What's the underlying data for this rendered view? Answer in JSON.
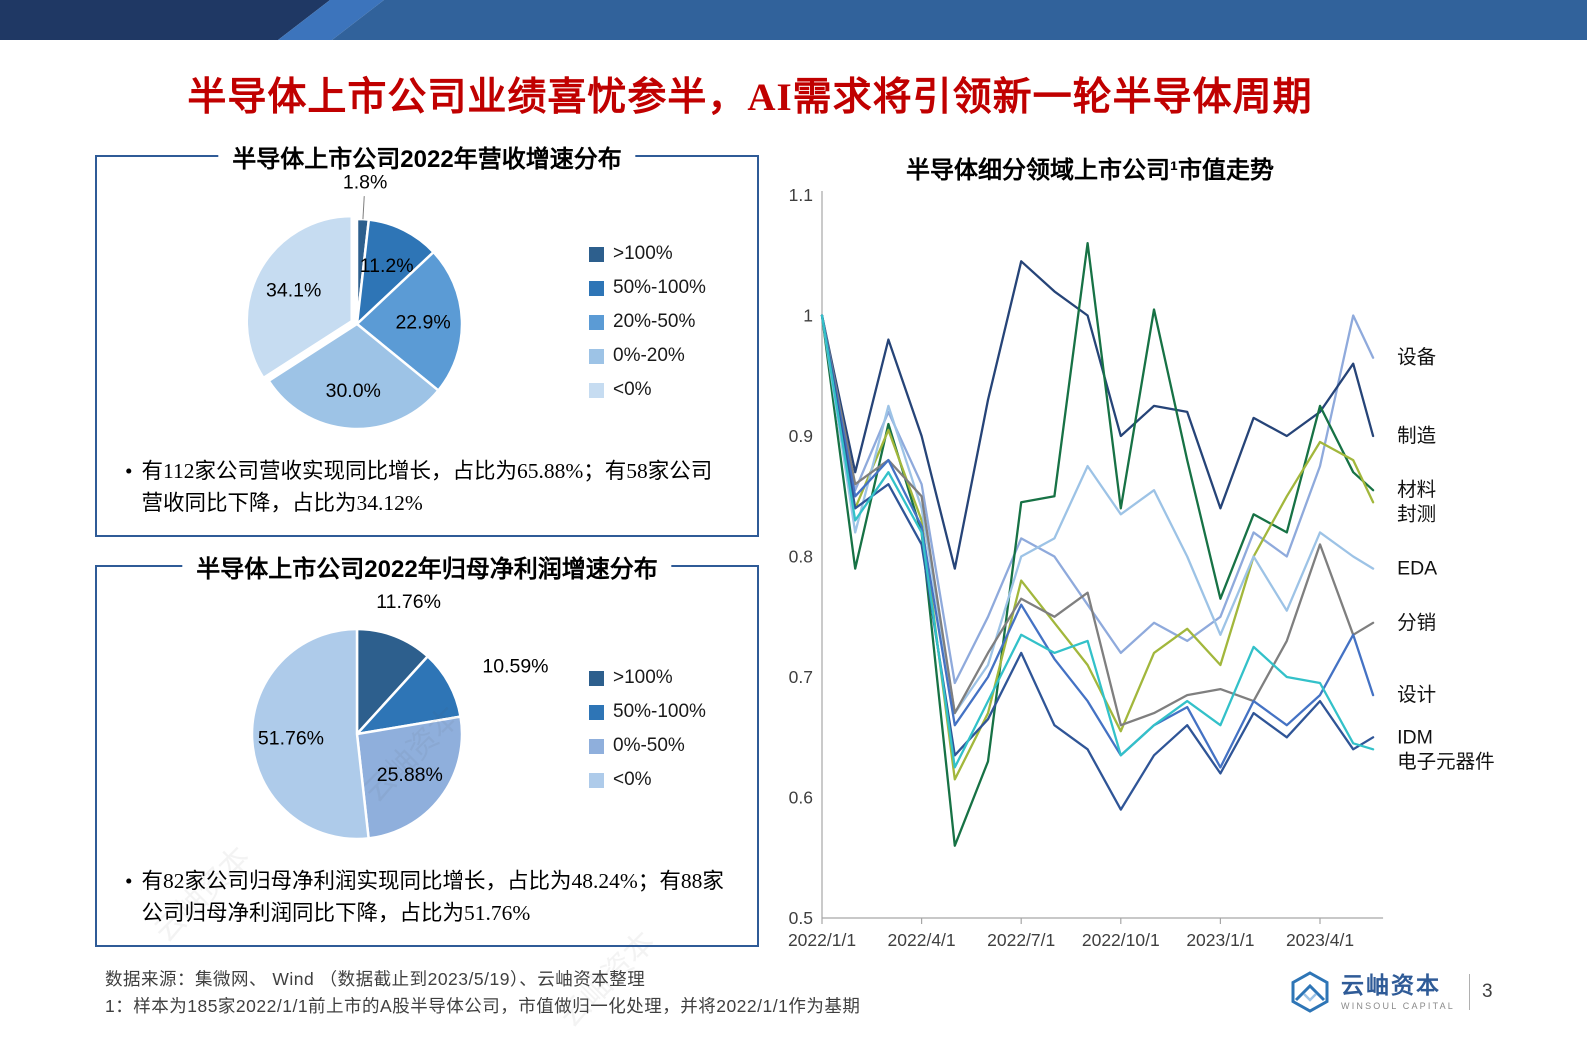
{
  "header": {
    "title": "半导体上市公司业绩喜忧参半，AI需求将引领新一轮半导体周期"
  },
  "notes": {
    "revenue": "有112家公司营收实现同比增长，占比为65.88%；有58家公司营收同比下降，占比为34.12%",
    "profit": "有82家公司归母净利润实现同比增长，占比为48.24%；有88家公司归母净利润同比下降，占比为51.76%"
  },
  "watermark": {
    "text": "云岫资本"
  },
  "footer": {
    "source": "数据来源：集微网、 Wind （数据截止到2023/5/19）、云岫资本整理",
    "footnote": "1：样本为185家2022/1/1前上市的A股半导体公司，市值做归一化处理，并将2022/1/1作为基期",
    "logo_name": "云岫资本",
    "logo_subtitle": "WINSOUL CAPITAL",
    "page_number": "3"
  },
  "chart_data": [
    {
      "type": "pie",
      "title": "半导体上市公司2022年营收增速分布",
      "legend_position": "right",
      "slices": [
        {
          "legend": ">100%",
          "value": 1.8,
          "display": "1.8%",
          "color": "#2D5F8D",
          "label_outside": true,
          "leader": true
        },
        {
          "legend": "50%-100%",
          "value": 11.2,
          "display": "11.2%",
          "color": "#2E75B6"
        },
        {
          "legend": "20%-50%",
          "value": 22.9,
          "display": "22.9%",
          "color": "#5B9BD5"
        },
        {
          "legend": "0%-20%",
          "value": 30.0,
          "display": "30.0%",
          "color": "#9DC3E6"
        },
        {
          "legend": "<0%",
          "value": 34.1,
          "display": "34.1%",
          "color": "#C6DCF1",
          "explode": 6
        }
      ]
    },
    {
      "type": "pie",
      "title": "半导体上市公司2022年归母净利润增速分布",
      "legend_position": "right",
      "slices": [
        {
          "legend": ">100%",
          "value": 11.76,
          "display": "11.76%",
          "color": "#2D5F8D",
          "label_outside": true
        },
        {
          "legend": "50%-100%",
          "value": 10.59,
          "display": "10.59%",
          "color": "#2E75B6",
          "label_outside": true
        },
        {
          "legend": "0%-50%",
          "value": 25.88,
          "display": "25.88%",
          "color": "#8FAFDC"
        },
        {
          "legend": "<0%",
          "value": 51.76,
          "display": "51.76%",
          "color": "#AECBEA"
        }
      ]
    },
    {
      "type": "line",
      "title": "半导体细分领域上市公司¹市值走势",
      "ylim": [
        0.5,
        1.1
      ],
      "grid": false,
      "y_ticks": [
        {
          "v": 1.1,
          "label": "1.1"
        },
        {
          "v": 1.0,
          "label": "1"
        },
        {
          "v": 0.9,
          "label": "0.9"
        },
        {
          "v": 0.8,
          "label": "0.8"
        },
        {
          "v": 0.7,
          "label": "0.7"
        },
        {
          "v": 0.6,
          "label": "0.6"
        },
        {
          "v": 0.5,
          "label": "0.5"
        }
      ],
      "x_months": [
        0,
        1,
        2,
        3,
        4,
        5,
        6,
        7,
        8,
        9,
        10,
        11,
        12,
        13,
        14,
        15,
        16,
        16.6
      ],
      "x_ticks": [
        {
          "m": 0,
          "label": "2022/1/1"
        },
        {
          "m": 3,
          "label": "2022/4/1"
        },
        {
          "m": 6,
          "label": "2022/7/1"
        },
        {
          "m": 9,
          "label": "2022/10/1"
        },
        {
          "m": 12,
          "label": "2023/1/1"
        },
        {
          "m": 15,
          "label": "2023/4/1"
        }
      ],
      "series": [
        {
          "name": "设备",
          "color": "#8FAADC",
          "values": [
            1.0,
            0.855,
            0.92,
            0.86,
            0.695,
            0.75,
            0.815,
            0.8,
            0.76,
            0.72,
            0.745,
            0.73,
            0.75,
            0.82,
            0.8,
            0.875,
            1.0,
            0.965
          ]
        },
        {
          "name": "制造",
          "color": "#264478",
          "values": [
            1.0,
            0.87,
            0.98,
            0.9,
            0.79,
            0.93,
            1.045,
            1.02,
            1.0,
            0.9,
            0.925,
            0.92,
            0.84,
            0.915,
            0.9,
            0.92,
            0.96,
            0.9
          ]
        },
        {
          "name": "材料",
          "color": "#177245",
          "values": [
            1.0,
            0.79,
            0.91,
            0.82,
            0.56,
            0.63,
            0.845,
            0.85,
            1.06,
            0.84,
            1.005,
            0.88,
            0.765,
            0.835,
            0.82,
            0.925,
            0.87,
            0.855
          ]
        },
        {
          "name": "封测",
          "color": "#A2B73C",
          "values": [
            1.0,
            0.84,
            0.905,
            0.83,
            0.615,
            0.67,
            0.78,
            0.745,
            0.71,
            0.655,
            0.72,
            0.74,
            0.71,
            0.8,
            0.85,
            0.895,
            0.88,
            0.845
          ]
        },
        {
          "name": "EDA",
          "color": "#9DC3E6",
          "values": [
            1.0,
            0.82,
            0.925,
            0.84,
            0.67,
            0.71,
            0.8,
            0.815,
            0.875,
            0.835,
            0.855,
            0.8,
            0.735,
            0.8,
            0.755,
            0.82,
            0.8,
            0.79
          ]
        },
        {
          "name": "分销",
          "color": "#7F7F7F",
          "values": [
            1.0,
            0.86,
            0.88,
            0.85,
            0.67,
            0.72,
            0.765,
            0.75,
            0.77,
            0.66,
            0.67,
            0.685,
            0.69,
            0.68,
            0.73,
            0.81,
            0.735,
            0.745
          ]
        },
        {
          "name": "设计",
          "color": "#4472C4",
          "values": [
            1.0,
            0.85,
            0.88,
            0.825,
            0.66,
            0.7,
            0.76,
            0.715,
            0.68,
            0.635,
            0.66,
            0.675,
            0.625,
            0.68,
            0.66,
            0.685,
            0.735,
            0.685
          ]
        },
        {
          "name": "IDM",
          "color": "#2F5597",
          "values": [
            1.0,
            0.84,
            0.86,
            0.81,
            0.635,
            0.665,
            0.72,
            0.66,
            0.64,
            0.59,
            0.635,
            0.66,
            0.62,
            0.67,
            0.65,
            0.68,
            0.64,
            0.65
          ]
        },
        {
          "name": "电子元器件",
          "color": "#33C1C9",
          "values": [
            1.0,
            0.83,
            0.87,
            0.82,
            0.625,
            0.68,
            0.735,
            0.72,
            0.73,
            0.635,
            0.66,
            0.68,
            0.66,
            0.725,
            0.7,
            0.695,
            0.645,
            0.64
          ]
        }
      ]
    }
  ]
}
